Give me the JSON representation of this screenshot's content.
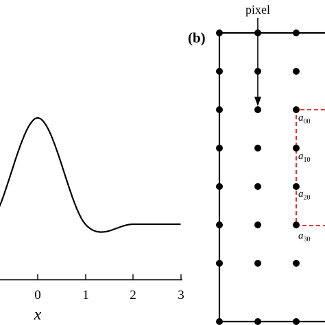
{
  "panel_a": {
    "xlabel": "x",
    "x_tick_labels": [
      "0",
      "1",
      "2",
      "3"
    ],
    "x_ticks": [
      0,
      1,
      2,
      3
    ],
    "xlim_visible": [
      -0.8,
      3.0
    ]
  },
  "panel_b": {
    "label": "(b)",
    "pixel_label": "pixel",
    "coefficients": [
      {
        "base": "a",
        "sub": "00"
      },
      {
        "base": "a",
        "sub": "10"
      },
      {
        "base": "a",
        "sub": "20"
      },
      {
        "base": "a",
        "sub": "30"
      }
    ],
    "dashed_color": "#e0191e",
    "grid_columns_visible": 3,
    "grid_rows_visible": 8
  }
}
